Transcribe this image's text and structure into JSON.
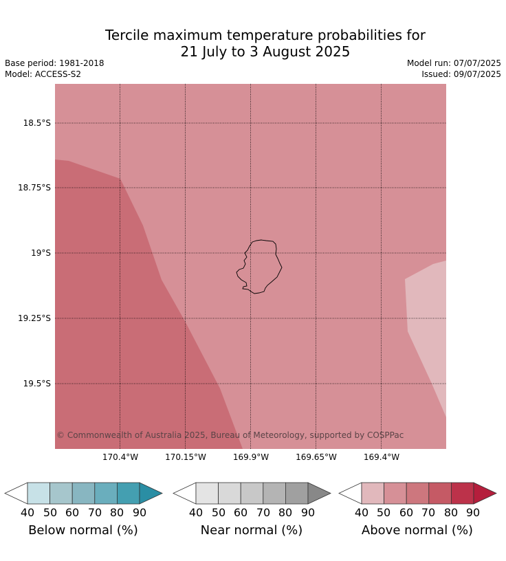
{
  "title_line1": "Tercile maximum temperature probabilities for",
  "title_line2": "21 July to 3 August 2025",
  "base_period": "Base period: 1981-2018",
  "model": "Model: ACCESS-S2",
  "model_run": "Model run: 07/07/2025",
  "issued": "Issued: 09/07/2025",
  "latitude_labels": [
    "18.5°S",
    "18.75°S",
    "19°S",
    "19.25°S",
    "19.5°S"
  ],
  "longitude_labels": [
    "170.4°W",
    "170.15°W",
    "169.9°W",
    "169.65°W",
    "169.4°W"
  ],
  "copyright": "© Commonwealth of Australia 2025, Bureau of Meteorology, supported by COSPPac",
  "regions": {
    "above_50_60": "#d69097",
    "above_60_70": "#c96d76",
    "above_40_50": "#e1b8bc"
  },
  "colorbars": [
    {
      "label": "Below normal (%)",
      "ticks": [
        "40",
        "50",
        "60",
        "70",
        "80",
        "90"
      ],
      "colors": [
        "#c7e1e7",
        "#a6c6cc",
        "#88b6c1",
        "#6aaebd",
        "#449fb1"
      ],
      "extend_color": "#2a8ea4"
    },
    {
      "label": "Near normal (%)",
      "ticks": [
        "40",
        "50",
        "60",
        "70",
        "80",
        "90"
      ],
      "colors": [
        "#e4e4e4",
        "#d9d9d9",
        "#c8c8c8",
        "#b4b4b4",
        "#a0a0a0"
      ],
      "extend_color": "#888888"
    },
    {
      "label": "Above normal (%)",
      "ticks": [
        "40",
        "50",
        "60",
        "70",
        "80",
        "90"
      ],
      "colors": [
        "#e1b8bc",
        "#d69097",
        "#cd777e",
        "#c55a65",
        "#bc324a"
      ],
      "extend_color": "#b51e3c"
    }
  ]
}
